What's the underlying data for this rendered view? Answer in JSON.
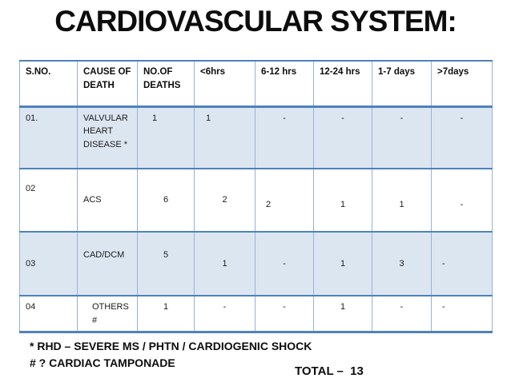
{
  "title": "CARDIOVASCULAR SYSTEM:",
  "table": {
    "headers": [
      "S.NO.",
      "CAUSE OF DEATH",
      "NO.OF DEATHS",
      "<6hrs",
      "6-12 hrs",
      "12-24 hrs",
      "1-7 days",
      ">7days"
    ],
    "rows": [
      {
        "cells": [
          "01.",
          "VALVULAR HEART DISEASE *",
          "1",
          "1",
          "-",
          "-",
          "-",
          "-"
        ]
      },
      {
        "cells": [
          "02",
          "ACS",
          "6",
          "2",
          "2",
          "1",
          "1",
          "-"
        ]
      },
      {
        "cells": [
          "03",
          "CAD/DCM",
          "5",
          "1",
          "-",
          "1",
          "3",
          "-"
        ]
      },
      {
        "cells": [
          "04",
          "OTHERS #",
          "1",
          "-",
          "-",
          "1",
          "-",
          "-"
        ]
      }
    ]
  },
  "footnotes": {
    "line1": "* RHD – SEVERE MS / PHTN / CARDIOGENIC SHOCK",
    "line2": "# ? CARDIAC TAMPONADE"
  },
  "total_label": "TOTAL –  13",
  "colors": {
    "band": "#dce6f1",
    "border_strong": "#4f81bd",
    "border_light": "#95b3d7"
  }
}
